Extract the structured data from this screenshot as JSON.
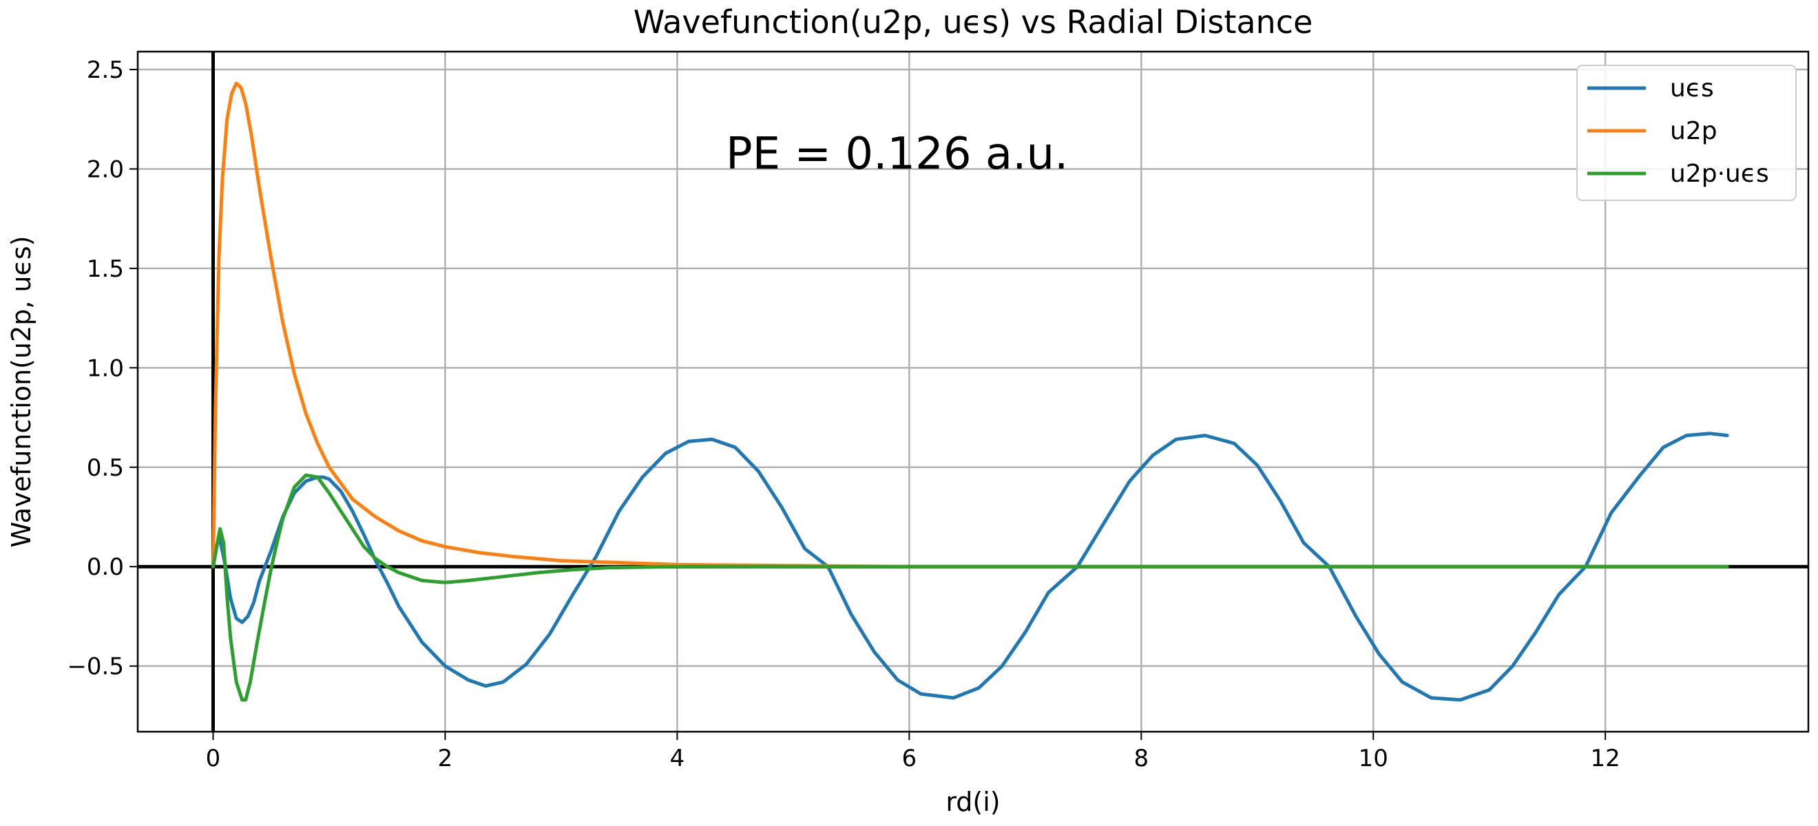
{
  "chart_data": {
    "type": "line",
    "title": "Wavefunction(u2p, uϵs) vs Radial Distance",
    "xlabel": "rd(i)",
    "ylabel": "Wavefunction(u2p, uϵs)",
    "xlim": [
      -0.65,
      13.75
    ],
    "ylim": [
      -0.83,
      2.59
    ],
    "xticks": [
      0,
      2,
      4,
      6,
      8,
      10,
      12
    ],
    "xtick_labels": [
      "0",
      "2",
      "4",
      "6",
      "8",
      "10",
      "12"
    ],
    "yticks": [
      -0.5,
      0.0,
      0.5,
      1.0,
      1.5,
      2.0,
      2.5
    ],
    "ytick_labels": [
      "−0.5",
      "0.0",
      "0.5",
      "1.0",
      "1.5",
      "2.0",
      "2.5"
    ],
    "grid": true,
    "legend_position": "top-right",
    "annotation": "PE = 0.126 a.u.",
    "reference_lines": [
      "x = 0",
      "y = 0"
    ],
    "colors": {
      "ues": "#1f77b4",
      "u2p": "#ff7f0e",
      "product": "#2ca02c",
      "grid": "#b0b0b0",
      "axis": "#000000"
    },
    "series": [
      {
        "name": "uϵs",
        "color": "#1f77b4",
        "x": [
          0.0,
          0.05,
          0.1,
          0.15,
          0.2,
          0.25,
          0.3,
          0.35,
          0.4,
          0.5,
          0.6,
          0.7,
          0.8,
          0.9,
          0.95,
          1.0,
          1.1,
          1.2,
          1.3,
          1.4,
          1.5,
          1.6,
          1.8,
          2.0,
          2.2,
          2.35,
          2.5,
          2.7,
          2.9,
          3.1,
          3.3,
          3.5,
          3.7,
          3.9,
          4.1,
          4.3,
          4.5,
          4.7,
          4.9,
          5.1,
          5.3,
          5.5,
          5.7,
          5.9,
          6.1,
          6.38,
          6.6,
          6.8,
          7.0,
          7.2,
          7.45,
          7.7,
          7.9,
          8.1,
          8.3,
          8.55,
          8.8,
          9.0,
          9.2,
          9.4,
          9.62,
          9.85,
          10.05,
          10.25,
          10.5,
          10.75,
          11.0,
          11.2,
          11.4,
          11.6,
          11.83,
          12.05,
          12.3,
          12.5,
          12.7,
          12.9,
          13.05
        ],
        "values": [
          0.0,
          0.16,
          0.02,
          -0.16,
          -0.26,
          -0.28,
          -0.25,
          -0.18,
          -0.07,
          0.08,
          0.25,
          0.37,
          0.43,
          0.45,
          0.45,
          0.44,
          0.38,
          0.28,
          0.16,
          0.03,
          -0.08,
          -0.2,
          -0.38,
          -0.5,
          -0.57,
          -0.6,
          -0.58,
          -0.49,
          -0.34,
          -0.14,
          0.05,
          0.28,
          0.45,
          0.57,
          0.63,
          0.64,
          0.6,
          0.48,
          0.3,
          0.09,
          -0.0,
          -0.24,
          -0.43,
          -0.57,
          -0.64,
          -0.66,
          -0.61,
          -0.5,
          -0.33,
          -0.13,
          0.0,
          0.24,
          0.43,
          0.56,
          0.64,
          0.66,
          0.62,
          0.51,
          0.33,
          0.12,
          0.0,
          -0.25,
          -0.44,
          -0.58,
          -0.66,
          -0.67,
          -0.62,
          -0.5,
          -0.33,
          -0.14,
          0.0,
          0.27,
          0.46,
          0.6,
          0.66,
          0.67,
          0.66
        ]
      },
      {
        "name": "u2p",
        "color": "#ff7f0e",
        "x": [
          0.0,
          0.02,
          0.05,
          0.08,
          0.12,
          0.16,
          0.2,
          0.24,
          0.28,
          0.33,
          0.4,
          0.5,
          0.6,
          0.7,
          0.8,
          0.9,
          1.0,
          1.2,
          1.4,
          1.6,
          1.8,
          2.0,
          2.3,
          2.6,
          3.0,
          3.5,
          4.0,
          5.0,
          6.0,
          8.0,
          10.0,
          13.05
        ],
        "values": [
          0.0,
          0.8,
          1.55,
          1.95,
          2.25,
          2.38,
          2.43,
          2.41,
          2.33,
          2.17,
          1.9,
          1.55,
          1.23,
          0.97,
          0.77,
          0.62,
          0.5,
          0.34,
          0.25,
          0.18,
          0.13,
          0.1,
          0.07,
          0.05,
          0.03,
          0.02,
          0.01,
          0.005,
          0.0,
          0.0,
          0.0,
          0.0
        ]
      },
      {
        "name": "u2p·uϵs",
        "color": "#2ca02c",
        "x": [
          0.0,
          0.03,
          0.06,
          0.09,
          0.12,
          0.15,
          0.2,
          0.25,
          0.28,
          0.32,
          0.38,
          0.45,
          0.5,
          0.55,
          0.6,
          0.7,
          0.8,
          0.9,
          1.0,
          1.1,
          1.2,
          1.3,
          1.4,
          1.5,
          1.6,
          1.8,
          2.0,
          2.2,
          2.5,
          2.8,
          3.1,
          3.4,
          4.0,
          5.0,
          6.0,
          8.0,
          10.0,
          13.05
        ],
        "values": [
          0.0,
          0.1,
          0.19,
          0.12,
          -0.15,
          -0.36,
          -0.58,
          -0.67,
          -0.67,
          -0.58,
          -0.38,
          -0.16,
          -0.01,
          0.12,
          0.24,
          0.4,
          0.46,
          0.45,
          0.37,
          0.28,
          0.19,
          0.1,
          0.04,
          0.0,
          -0.03,
          -0.07,
          -0.08,
          -0.07,
          -0.05,
          -0.03,
          -0.015,
          -0.005,
          0.0,
          0.0,
          0.0,
          0.0,
          0.0,
          0.0
        ]
      }
    ]
  }
}
